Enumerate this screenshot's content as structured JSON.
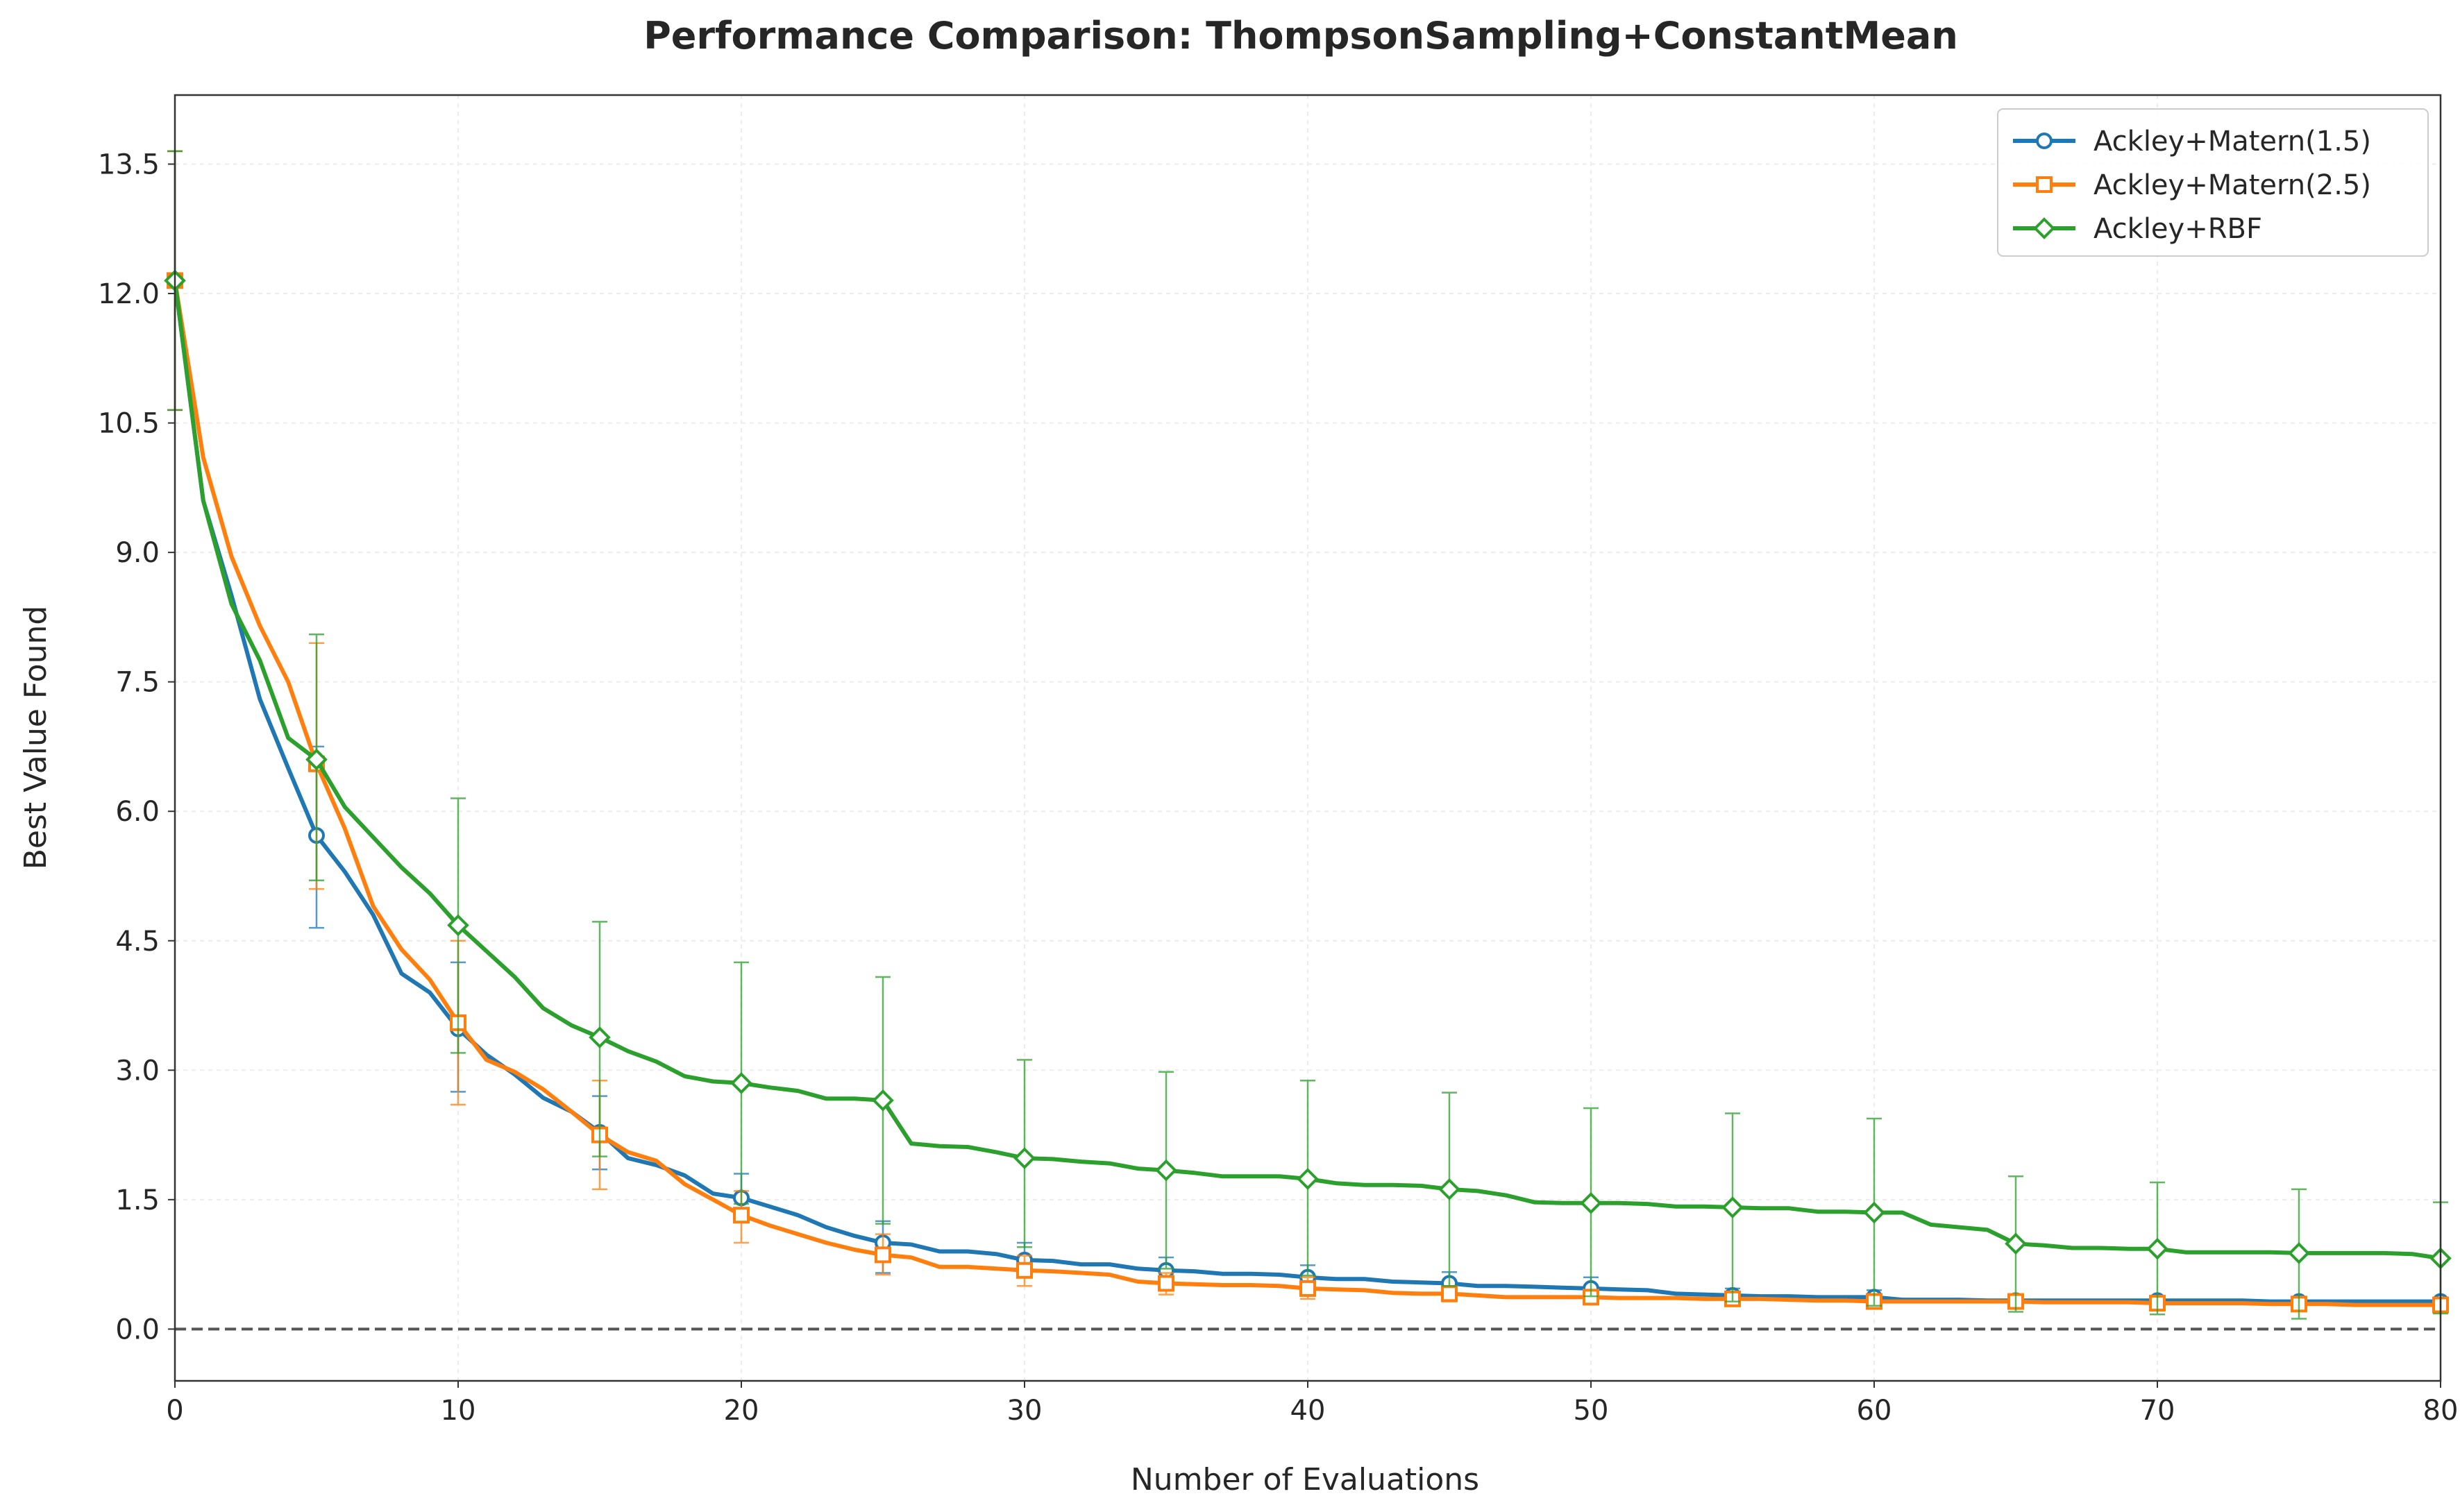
{
  "chart_data": {
    "type": "line",
    "title": "Performance Comparison: ThompsonSampling+ConstantMean",
    "xlabel": "Number of Evaluations",
    "ylabel": "Best Value Found",
    "xlim": [
      0,
      80
    ],
    "ylim": [
      -0.6,
      14.3
    ],
    "xticks": [
      0,
      10,
      20,
      30,
      40,
      50,
      60,
      70,
      80
    ],
    "xtick_labels": [
      "0",
      "10",
      "20",
      "30",
      "40",
      "50",
      "60",
      "70",
      "80"
    ],
    "yticks": [
      0,
      1.5,
      3,
      4.5,
      6,
      7.5,
      9,
      10.5,
      12,
      13.5
    ],
    "ytick_labels": [
      "0.0",
      "1.5",
      "3.0",
      "4.5",
      "6.0",
      "7.5",
      "9.0",
      "10.5",
      "12.0",
      "13.5"
    ],
    "grid": true,
    "legend_position": "top-right",
    "reference_line": {
      "y": 0,
      "style": "dashed",
      "color": "#555555"
    },
    "marker_every": 5,
    "series": [
      {
        "name": "Ackley+Matern(1.5)",
        "color": "#1f77b4",
        "marker": "circle",
        "x": [
          0,
          1,
          2,
          3,
          4,
          5,
          6,
          7,
          8,
          9,
          10,
          11,
          12,
          13,
          14,
          15,
          16,
          17,
          18,
          19,
          20,
          21,
          22,
          23,
          24,
          25,
          26,
          27,
          28,
          29,
          30,
          31,
          32,
          33,
          34,
          35,
          36,
          37,
          38,
          39,
          40,
          41,
          42,
          43,
          44,
          45,
          46,
          47,
          48,
          49,
          50,
          51,
          52,
          53,
          54,
          55,
          56,
          57,
          58,
          59,
          60,
          61,
          62,
          63,
          64,
          65,
          66,
          67,
          68,
          69,
          70,
          71,
          72,
          73,
          74,
          75,
          76,
          77,
          78,
          79,
          80
        ],
        "y": [
          12.15,
          9.6,
          8.5,
          7.3,
          6.5,
          5.72,
          5.3,
          4.8,
          4.12,
          3.9,
          3.48,
          3.18,
          2.95,
          2.68,
          2.52,
          2.28,
          1.98,
          1.9,
          1.78,
          1.57,
          1.52,
          1.42,
          1.32,
          1.18,
          1.08,
          1.0,
          0.98,
          0.9,
          0.9,
          0.87,
          0.8,
          0.79,
          0.75,
          0.75,
          0.7,
          0.68,
          0.67,
          0.64,
          0.64,
          0.63,
          0.6,
          0.58,
          0.58,
          0.55,
          0.54,
          0.53,
          0.5,
          0.5,
          0.49,
          0.48,
          0.47,
          0.46,
          0.45,
          0.41,
          0.4,
          0.39,
          0.38,
          0.38,
          0.37,
          0.37,
          0.37,
          0.34,
          0.34,
          0.34,
          0.33,
          0.33,
          0.33,
          0.33,
          0.33,
          0.33,
          0.33,
          0.33,
          0.33,
          0.33,
          0.32,
          0.32,
          0.32,
          0.32,
          0.32,
          0.32,
          0.32
        ],
        "error_x": [
          0,
          5,
          10,
          15,
          20,
          25,
          30,
          35,
          40,
          45,
          50,
          55,
          60,
          65,
          70,
          75,
          80
        ],
        "error_low": [
          10.65,
          4.65,
          2.75,
          1.85,
          1.25,
          0.65,
          0.6,
          0.52,
          0.45,
          0.4,
          0.36,
          0.33,
          0.31,
          0.29,
          0.29,
          0.28,
          0.27
        ],
        "error_high": [
          13.65,
          6.75,
          4.25,
          2.7,
          1.8,
          1.25,
          1.0,
          0.83,
          0.74,
          0.66,
          0.6,
          0.47,
          0.45,
          0.38,
          0.37,
          0.36,
          0.36
        ]
      },
      {
        "name": "Ackley+Matern(2.5)",
        "color": "#ff7f0e",
        "marker": "square",
        "x": [
          0,
          1,
          2,
          3,
          4,
          5,
          6,
          7,
          8,
          9,
          10,
          11,
          12,
          13,
          14,
          15,
          16,
          17,
          18,
          19,
          20,
          21,
          22,
          23,
          24,
          25,
          26,
          27,
          28,
          29,
          30,
          31,
          32,
          33,
          34,
          35,
          36,
          37,
          38,
          39,
          40,
          41,
          42,
          43,
          44,
          45,
          46,
          47,
          48,
          49,
          50,
          51,
          52,
          53,
          54,
          55,
          56,
          57,
          58,
          59,
          60,
          61,
          62,
          63,
          64,
          65,
          66,
          67,
          68,
          69,
          70,
          71,
          72,
          73,
          74,
          75,
          76,
          77,
          78,
          79,
          80
        ],
        "y": [
          12.15,
          10.1,
          8.95,
          8.15,
          7.5,
          6.55,
          5.8,
          4.9,
          4.4,
          4.05,
          3.55,
          3.12,
          2.98,
          2.78,
          2.52,
          2.25,
          2.05,
          1.95,
          1.68,
          1.5,
          1.32,
          1.2,
          1.1,
          1.0,
          0.92,
          0.86,
          0.83,
          0.72,
          0.72,
          0.7,
          0.68,
          0.67,
          0.65,
          0.63,
          0.55,
          0.53,
          0.52,
          0.51,
          0.51,
          0.5,
          0.47,
          0.46,
          0.45,
          0.42,
          0.41,
          0.41,
          0.39,
          0.37,
          0.37,
          0.37,
          0.37,
          0.36,
          0.36,
          0.36,
          0.35,
          0.35,
          0.35,
          0.34,
          0.33,
          0.33,
          0.32,
          0.32,
          0.32,
          0.32,
          0.32,
          0.32,
          0.31,
          0.31,
          0.31,
          0.31,
          0.3,
          0.3,
          0.3,
          0.3,
          0.29,
          0.29,
          0.29,
          0.28,
          0.28,
          0.28,
          0.28
        ],
        "error_x": [
          0,
          5,
          10,
          15,
          20,
          25,
          30,
          35,
          40,
          45,
          50,
          55,
          60,
          65,
          70,
          75,
          80
        ],
        "error_low": [
          10.65,
          5.1,
          2.6,
          1.62,
          1.0,
          0.63,
          0.5,
          0.4,
          0.35,
          0.32,
          0.3,
          0.28,
          0.26,
          0.24,
          0.24,
          0.22,
          0.22
        ],
        "error_high": [
          13.65,
          7.95,
          4.5,
          2.88,
          1.6,
          1.1,
          0.85,
          0.65,
          0.6,
          0.5,
          0.45,
          0.42,
          0.4,
          0.38,
          0.37,
          0.35,
          0.35
        ]
      },
      {
        "name": "Ackley+RBF",
        "color": "#2ca02c",
        "marker": "diamond",
        "x": [
          0,
          1,
          2,
          3,
          4,
          5,
          6,
          7,
          8,
          9,
          10,
          11,
          12,
          13,
          14,
          15,
          16,
          17,
          18,
          19,
          20,
          21,
          22,
          23,
          24,
          25,
          26,
          27,
          28,
          29,
          30,
          31,
          32,
          33,
          34,
          35,
          36,
          37,
          38,
          39,
          40,
          41,
          42,
          43,
          44,
          45,
          46,
          47,
          48,
          49,
          50,
          51,
          52,
          53,
          54,
          55,
          56,
          57,
          58,
          59,
          60,
          61,
          62,
          63,
          64,
          65,
          66,
          67,
          68,
          69,
          70,
          71,
          72,
          73,
          74,
          75,
          76,
          77,
          78,
          79,
          80
        ],
        "y": [
          12.15,
          9.6,
          8.4,
          7.75,
          6.85,
          6.6,
          6.05,
          5.7,
          5.35,
          5.05,
          4.68,
          4.38,
          4.08,
          3.72,
          3.52,
          3.38,
          3.22,
          3.1,
          2.93,
          2.87,
          2.85,
          2.8,
          2.76,
          2.67,
          2.67,
          2.65,
          2.15,
          2.12,
          2.11,
          2.05,
          1.98,
          1.97,
          1.94,
          1.92,
          1.86,
          1.84,
          1.81,
          1.77,
          1.77,
          1.77,
          1.74,
          1.69,
          1.67,
          1.67,
          1.66,
          1.62,
          1.6,
          1.55,
          1.47,
          1.46,
          1.46,
          1.46,
          1.45,
          1.42,
          1.42,
          1.41,
          1.4,
          1.4,
          1.36,
          1.36,
          1.35,
          1.35,
          1.21,
          1.18,
          1.15,
          0.99,
          0.97,
          0.94,
          0.94,
          0.93,
          0.93,
          0.89,
          0.89,
          0.89,
          0.89,
          0.88,
          0.88,
          0.88,
          0.88,
          0.87,
          0.82
        ],
        "error_x": [
          0,
          5,
          10,
          15,
          20,
          25,
          30,
          35,
          40,
          45,
          50,
          55,
          60,
          65,
          70,
          75,
          80
        ],
        "error_low": [
          10.65,
          5.2,
          3.2,
          2.0,
          1.45,
          1.22,
          0.95,
          0.7,
          0.62,
          0.5,
          0.38,
          0.32,
          0.27,
          0.2,
          0.17,
          0.12,
          0.18
        ],
        "error_high": [
          13.65,
          8.05,
          6.15,
          4.72,
          4.25,
          4.08,
          3.12,
          2.98,
          2.88,
          2.74,
          2.56,
          2.5,
          2.44,
          1.77,
          1.7,
          1.62,
          1.47
        ]
      }
    ]
  }
}
